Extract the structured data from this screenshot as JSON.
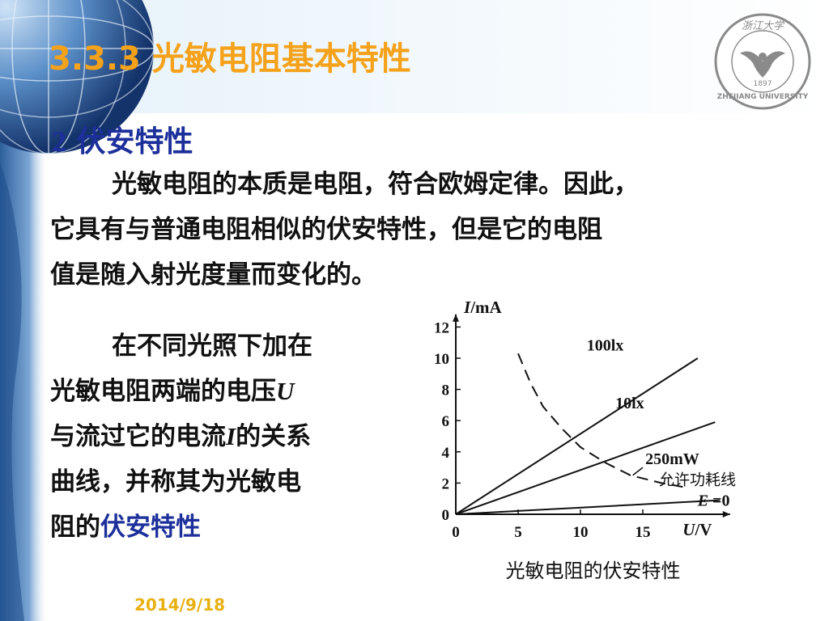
{
  "slide": {
    "title": "3.3.3 光敏电阻基本特性",
    "subtitle_num": "2",
    "subtitle_text": "伏安特性",
    "para1": [
      "光敏电阻的本质是电阻，符合欧姆定律。因此，",
      "它具有与普通电阻相似的伏安特性，但是它的电阻",
      "值是随入射光度量而变化的。"
    ],
    "para2": {
      "l1": "在不同光照下加在",
      "l2a": "光敏电阻两端的电压",
      "l2var": "U",
      "l3a": "与流过它的电流",
      "l3var": "I",
      "l3b": "的关系",
      "l4": "曲线，并称其为光敏电",
      "l5a": "阻的",
      "l5hl": "伏安特性"
    },
    "date": "2014/9/18",
    "logo": {
      "name": "zhejiang-university-logo",
      "top_chars": "浙江大学",
      "year": "1897",
      "bottom_text": "ZHEJIANG UNIVERSITY"
    },
    "colors": {
      "title": "#f5a21a",
      "subtitle": "#1c2f9b",
      "body": "#111111",
      "date": "#e9b012"
    }
  },
  "chart_data": {
    "type": "line",
    "caption": "光敏电阻的伏安特性",
    "xlabel_var": "U",
    "xlabel_unit": "/V",
    "ylabel_var": "I",
    "ylabel_unit": "/mA",
    "xlim": [
      0,
      22
    ],
    "ylim": [
      0,
      12.5
    ],
    "x_ticks": [
      0,
      5,
      10,
      15
    ],
    "y_ticks": [
      0,
      2,
      4,
      6,
      8,
      10,
      12
    ],
    "series": [
      {
        "name": "100lx",
        "style": "solid",
        "points": [
          [
            0,
            0
          ],
          [
            19.4,
            10.0
          ]
        ]
      },
      {
        "name": "10lx",
        "style": "solid",
        "points": [
          [
            0,
            0
          ],
          [
            20.8,
            5.9
          ]
        ]
      },
      {
        "name": "E=0",
        "style": "solid",
        "points": [
          [
            0,
            0
          ],
          [
            21.2,
            0.9
          ]
        ]
      },
      {
        "name": "允许功耗线",
        "style": "dashed",
        "points": [
          [
            5.0,
            10.3
          ],
          [
            6.0,
            8.4
          ],
          [
            7.0,
            6.9
          ],
          [
            8.5,
            5.5
          ],
          [
            10.0,
            4.3
          ],
          [
            12.0,
            3.3
          ],
          [
            14.0,
            2.5
          ],
          [
            16.5,
            2.0
          ],
          [
            18.6,
            1.7
          ]
        ]
      }
    ],
    "annotations": {
      "l100": "100lx",
      "l10": "10lx",
      "lpower": "250mW",
      "lpower_desc": "允许功耗线",
      "le0_var": "E",
      "le0_val": " =0"
    }
  }
}
